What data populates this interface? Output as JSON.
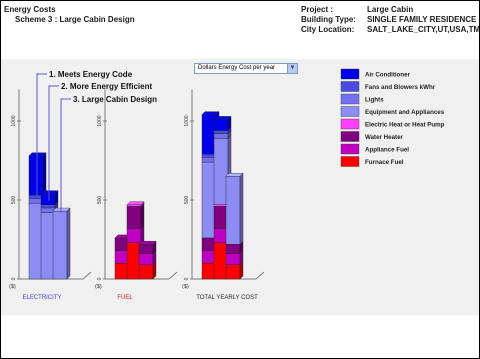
{
  "header": {
    "left_title": "Energy Costs",
    "left_subtitle": "Scheme 3 : Large Cabin Design",
    "project_label": "Project :",
    "project_value": "Large Cabin",
    "building_label": "Building Type:",
    "building_value": "SINGLE FAMILY RESIDENCE",
    "city_label": "City Location:",
    "city_value": "SALT_LAKE_CITY,UT,USA,TM"
  },
  "dropdown": {
    "selected": "Dollars Energy Cost per year"
  },
  "colors": {
    "chart_background": "#f0f0f0"
  },
  "chart_data": {
    "type": "bar",
    "subtype": "stacked-3d",
    "y_unit_label": "($)",
    "yticks": [
      0,
      500,
      1000
    ],
    "ylim": [
      0,
      1200
    ],
    "schemes": [
      "1. Meets Energy Code",
      "2. More Energy Efficient",
      "3. Large Cabin Design"
    ],
    "groups": [
      {
        "label": "ELECTRICITY",
        "label_color": "#3c3cc8"
      },
      {
        "label": "FUEL",
        "label_color": "#cc2020"
      },
      {
        "label": "TOTAL YEARLY COST",
        "label_color": "#222222"
      }
    ],
    "legend": [
      {
        "name": "Air Conditioner",
        "color": "#0000e8"
      },
      {
        "name": "Fans and Blowers kWhr",
        "color": "#4a4ae0"
      },
      {
        "name": "Lights",
        "color": "#7070f0"
      },
      {
        "name": "Equipment and Appliances",
        "color": "#8c8cf4"
      },
      {
        "name": "Electric Heat or Heat Pump",
        "color": "#ff40ff"
      },
      {
        "name": "Water Heater",
        "color": "#800080"
      },
      {
        "name": "Appliance Fuel",
        "color": "#c000c0"
      },
      {
        "name": "Furnace Fuel",
        "color": "#ff0000"
      }
    ],
    "stacks": [
      [
        [
          {
            "s": 3,
            "v": 480
          },
          {
            "s": 2,
            "v": 30
          },
          {
            "s": 1,
            "v": 20
          },
          {
            "s": 0,
            "v": 250
          }
        ],
        [
          {
            "s": 3,
            "v": 420
          },
          {
            "s": 2,
            "v": 30
          },
          {
            "s": 1,
            "v": 20
          },
          {
            "s": 0,
            "v": 70
          }
        ],
        [
          {
            "s": 3,
            "v": 430
          }
        ]
      ],
      [
        [
          {
            "s": 7,
            "v": 100
          },
          {
            "s": 6,
            "v": 80
          },
          {
            "s": 5,
            "v": 80
          }
        ],
        [
          {
            "s": 7,
            "v": 230
          },
          {
            "s": 6,
            "v": 90
          },
          {
            "s": 5,
            "v": 140
          },
          {
            "s": 4,
            "v": 10
          }
        ],
        [
          {
            "s": 7,
            "v": 90
          },
          {
            "s": 6,
            "v": 70
          },
          {
            "s": 5,
            "v": 60
          }
        ]
      ],
      [
        [
          {
            "s": 7,
            "v": 100
          },
          {
            "s": 6,
            "v": 80
          },
          {
            "s": 5,
            "v": 80
          },
          {
            "s": 3,
            "v": 480
          },
          {
            "s": 2,
            "v": 30
          },
          {
            "s": 1,
            "v": 20
          },
          {
            "s": 0,
            "v": 250
          }
        ],
        [
          {
            "s": 7,
            "v": 230
          },
          {
            "s": 6,
            "v": 90
          },
          {
            "s": 5,
            "v": 140
          },
          {
            "s": 4,
            "v": 10
          },
          {
            "s": 3,
            "v": 420
          },
          {
            "s": 2,
            "v": 30
          },
          {
            "s": 1,
            "v": 20
          },
          {
            "s": 0,
            "v": 70
          }
        ],
        [
          {
            "s": 7,
            "v": 90
          },
          {
            "s": 6,
            "v": 70
          },
          {
            "s": 5,
            "v": 60
          },
          {
            "s": 3,
            "v": 430
          }
        ]
      ]
    ]
  }
}
